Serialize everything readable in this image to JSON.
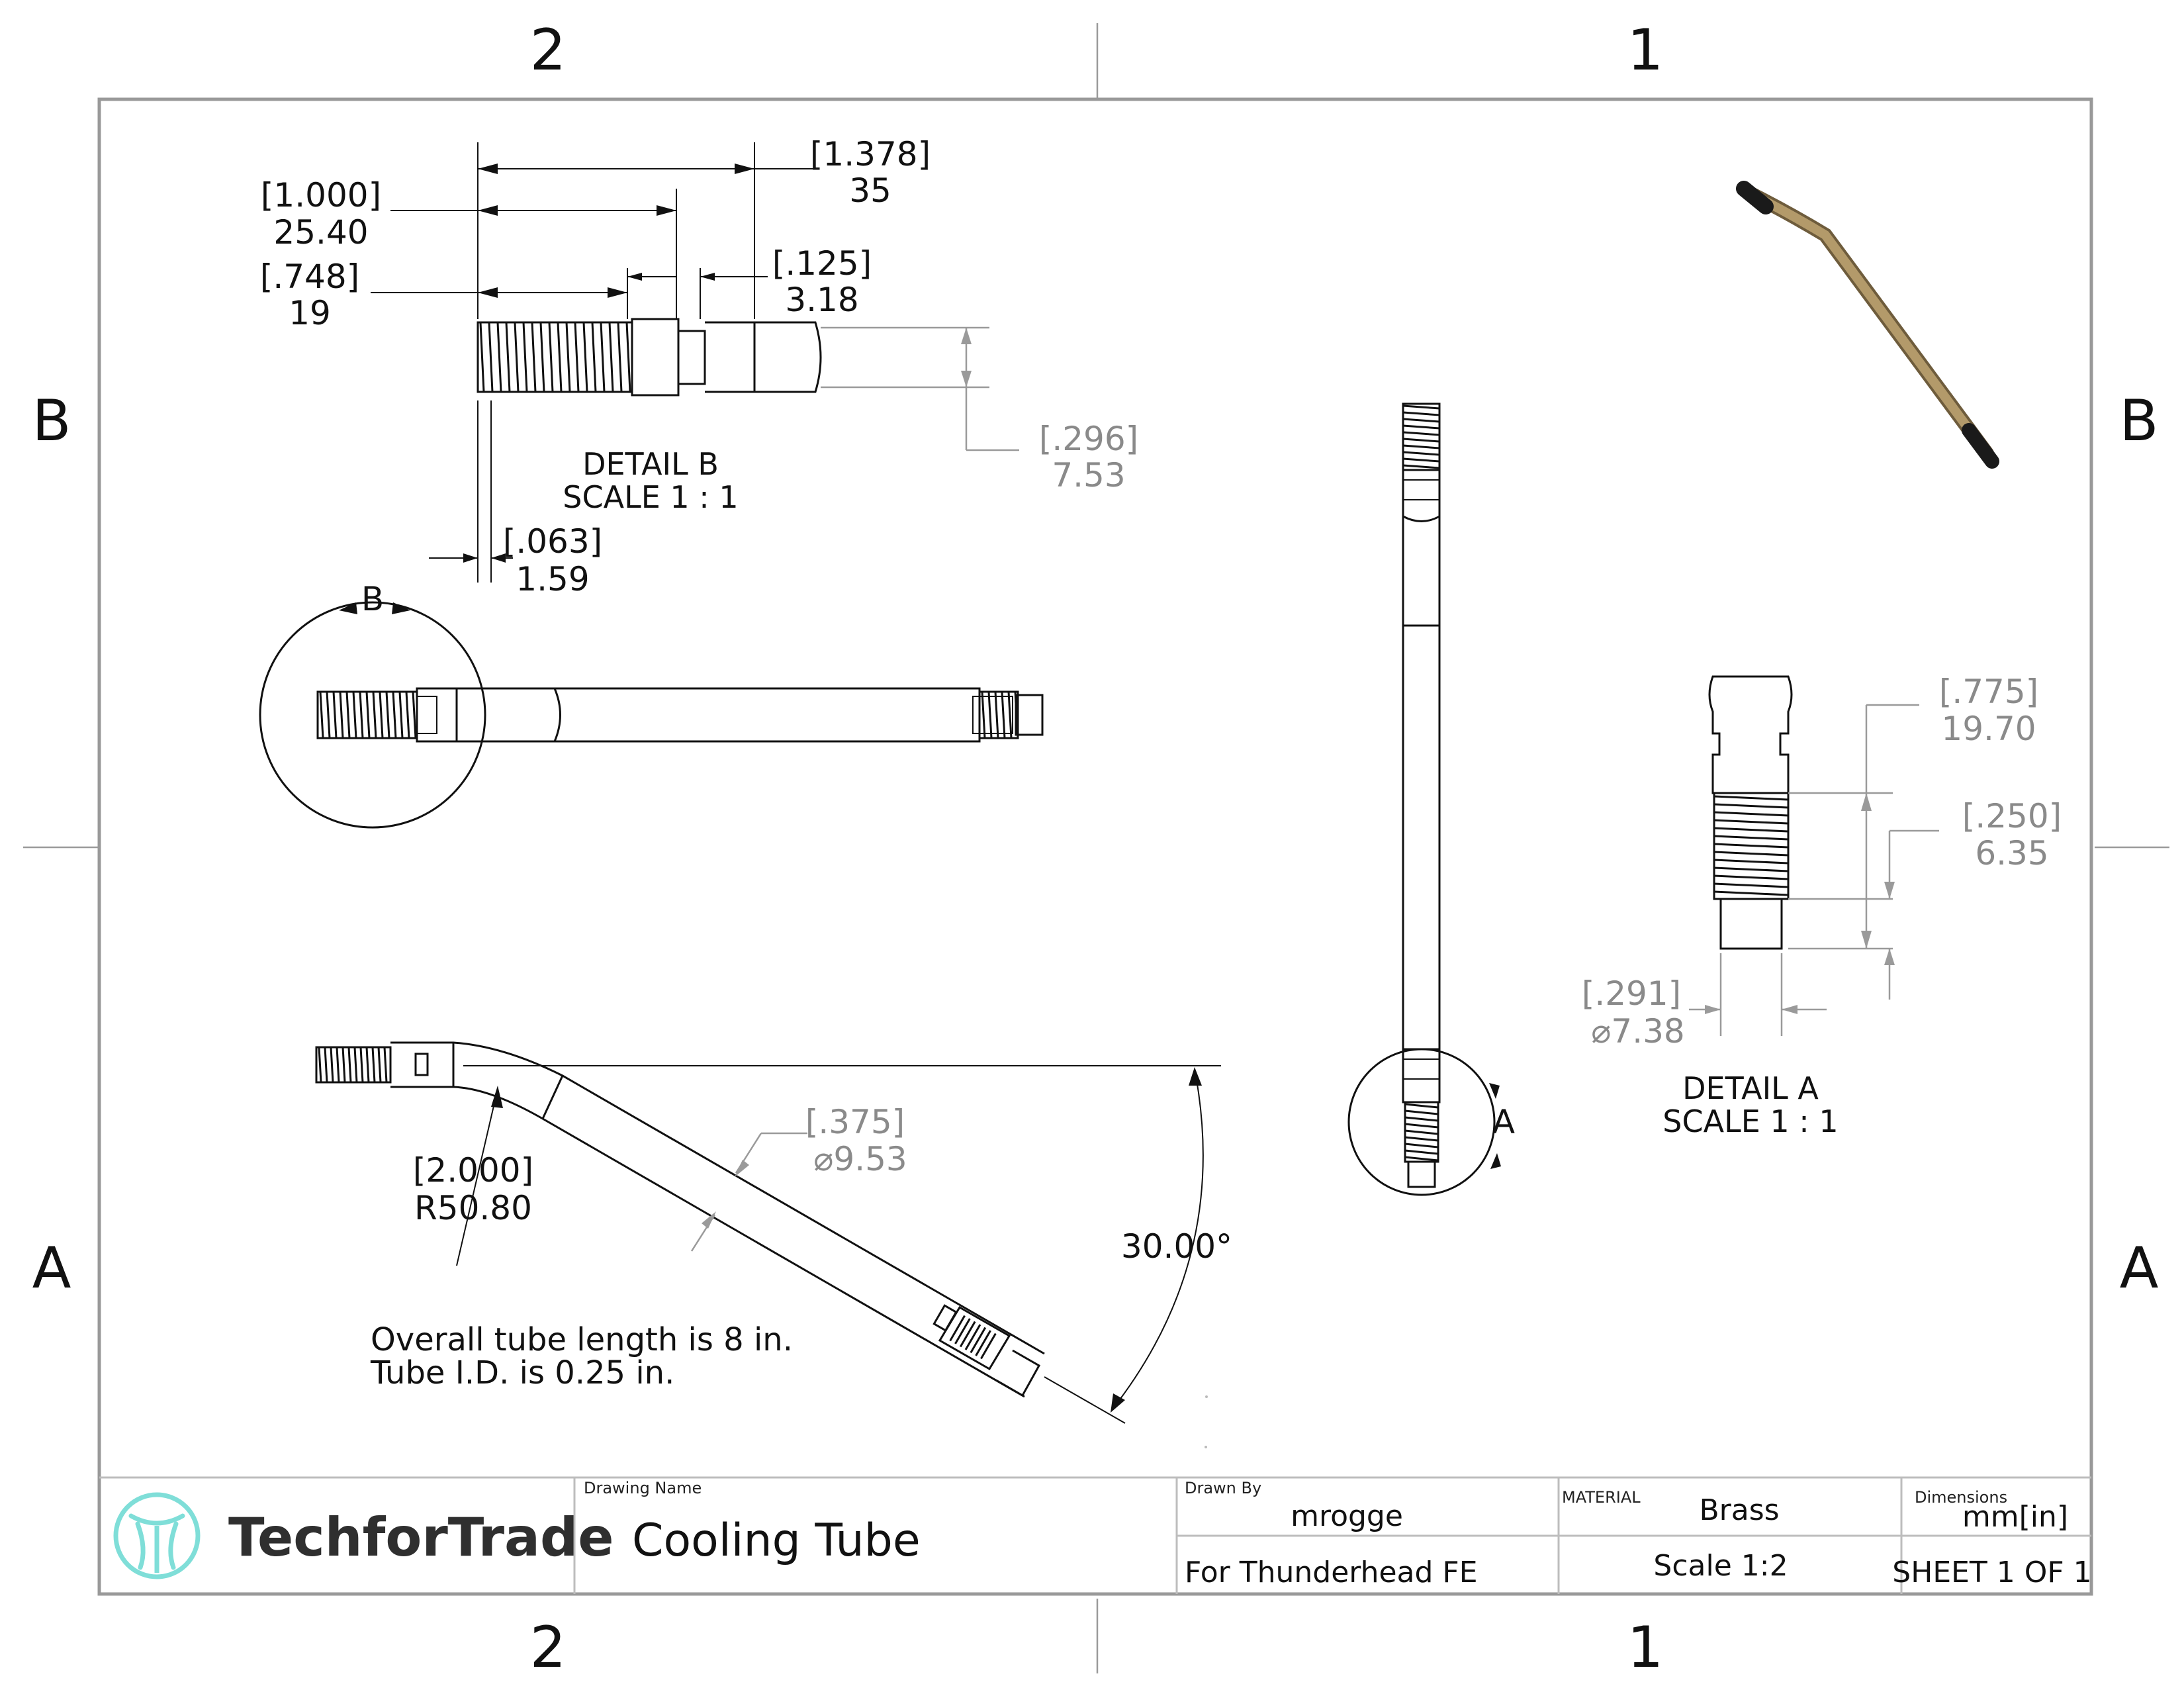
{
  "zones": {
    "top": [
      "2",
      "1"
    ],
    "bottom": [
      "2",
      "1"
    ],
    "left": [
      "B",
      "A"
    ],
    "right": [
      "B",
      "A"
    ]
  },
  "detail_b": {
    "title": "DETAIL B",
    "scale": "SCALE 1 : 1",
    "dims": [
      {
        "in": "1.378",
        "mm": "35"
      },
      {
        "in": "1.000",
        "mm": "25.40"
      },
      {
        "in": ".748",
        "mm": "19"
      },
      {
        "in": ".125",
        "mm": "3.18"
      },
      {
        "in": ".296",
        "mm": "7.53"
      },
      {
        "in": ".063",
        "mm": "1.59"
      }
    ],
    "callout": "B"
  },
  "bent_view": {
    "radius_in": "2.000",
    "radius_mm": "R50.80",
    "dia_in": ".375",
    "dia_mm": "9.53",
    "angle": "30.00°",
    "note_line1": "Overall tube length is 8 in.",
    "note_line2": "Tube I.D. is 0.25 in."
  },
  "vertical_view": {
    "callout": "A"
  },
  "detail_a": {
    "title": "DETAIL A",
    "scale": "SCALE 1 : 1",
    "dims": [
      {
        "in": ".775",
        "mm": "19.70"
      },
      {
        "in": ".250",
        "mm": "6.35"
      },
      {
        "in": ".291",
        "mm": "7.38"
      }
    ]
  },
  "title_block": {
    "company": "TechforTrade",
    "drawing_name_label": "Drawing Name",
    "drawing_name": "Cooling Tube",
    "drawn_by_label": "Drawn By",
    "drawn_by": "mrogge",
    "project": "For Thunderhead FE",
    "material_label": "MATERIAL",
    "material": "Brass",
    "scale": "Scale 1:2",
    "dimensions_label": "Dimensions",
    "dimensions": "mm[in]",
    "sheet": "SHEET 1 OF 1"
  },
  "colors": {
    "line": "#111111",
    "dim_gray": "#8a8a8a",
    "brass": "#b39a6a",
    "logo": "#7fded8"
  }
}
